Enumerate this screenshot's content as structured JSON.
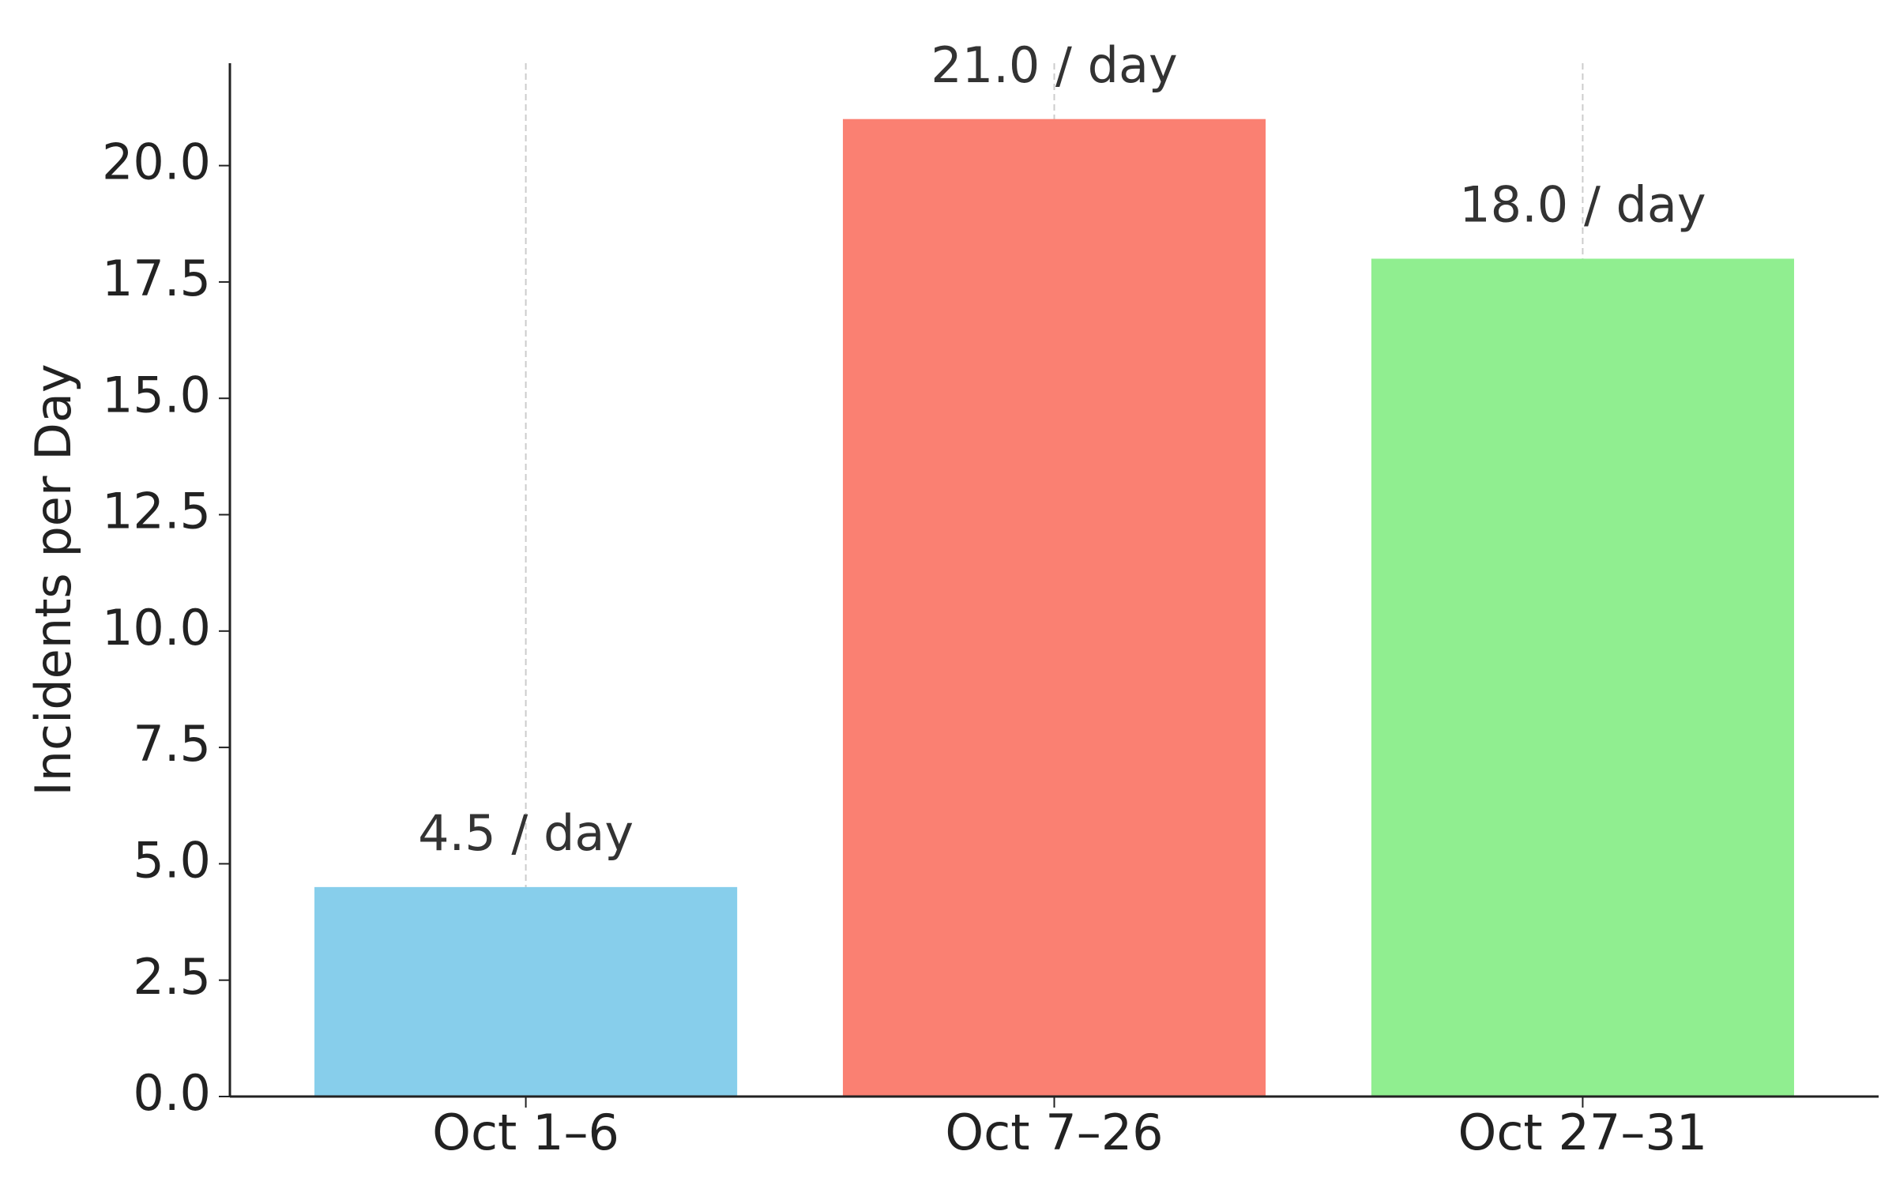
{
  "chart_data": {
    "type": "bar",
    "y_label": "Incidents per Day",
    "categories": [
      "Oct 1–6",
      "Oct 7–26",
      "Oct 27–31"
    ],
    "values": [
      4.5,
      21,
      18
    ],
    "value_labels": [
      "4.5 / day",
      "21.0 / day",
      "18.0 / day"
    ],
    "colors": [
      "#87ceeb",
      "#fa8072",
      "#90ee90"
    ],
    "ylim": [
      0,
      22.2
    ],
    "yticks": [
      {
        "value": 0,
        "label": "0.0"
      },
      2.5,
      {
        "value": 5,
        "label": "5.0"
      },
      7.5,
      {
        "value": 10,
        "label": "10.0"
      },
      12.5,
      {
        "value": 15,
        "label": "15.0"
      },
      17.5,
      {
        "value": 20,
        "label": "20.0"
      }
    ],
    "grid": "x"
  }
}
